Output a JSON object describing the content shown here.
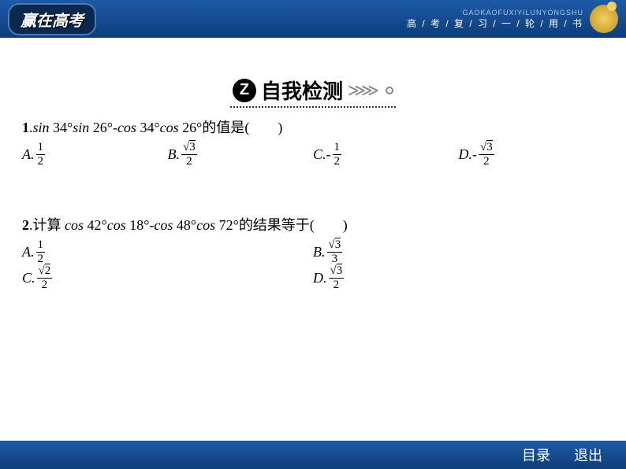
{
  "header": {
    "logo": "赢在高考",
    "pinyin": "GAOKAOFUXIYILUNYONGSHU",
    "subtitle": "高 / 考 / 复 / 习 / 一 / 轮 / 用 / 书"
  },
  "section": {
    "badge": "Z",
    "title": "自我检测"
  },
  "q1": {
    "num": "1",
    "text_prefix": ".",
    "expr_parts": {
      "sin": "sin",
      "cos": "cos",
      "deg34": " 34°",
      "deg26": " 26°",
      "minus": "-"
    },
    "text_suffix": "的值是(　　)",
    "options": {
      "a_label": "A.",
      "a_num": "1",
      "a_den": "2",
      "b_label": "B.",
      "b_num_sqrt": "3",
      "b_den": "2",
      "c_label": "C.",
      "c_neg": "-",
      "c_num": "1",
      "c_den": "2",
      "d_label": "D.",
      "d_neg": "-",
      "d_num_sqrt": "3",
      "d_den": "2"
    }
  },
  "q2": {
    "num": "2",
    "text_prefix": ".计算 ",
    "expr_parts": {
      "cos": "cos",
      "deg42": " 42°",
      "deg18": " 18°",
      "deg48": " 48°",
      "deg72": " 72°",
      "minus": "-"
    },
    "text_suffix": "的结果等于(　　)",
    "options": {
      "a_label": "A.",
      "a_num": "1",
      "a_den": "2",
      "b_label": "B.",
      "b_num_sqrt": "3",
      "b_den": "3",
      "c_label": "C.",
      "c_num_sqrt": "2",
      "c_den": "2",
      "d_label": "D.",
      "d_num_sqrt": "3",
      "d_den": "2"
    }
  },
  "footer": {
    "toc": "目录",
    "exit": "退出"
  },
  "colors": {
    "header_grad_top": "#1e5aa8",
    "header_grad_bottom": "#0d3d7a",
    "background": "#ffffff",
    "text": "#000000"
  }
}
